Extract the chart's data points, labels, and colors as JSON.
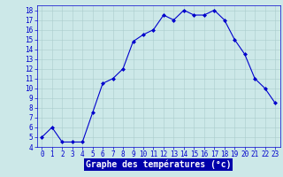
{
  "hours": [
    0,
    1,
    2,
    3,
    4,
    5,
    6,
    7,
    8,
    9,
    10,
    11,
    12,
    13,
    14,
    15,
    16,
    17,
    18,
    19,
    20,
    21,
    22,
    23
  ],
  "temps": [
    5.0,
    6.0,
    4.5,
    4.5,
    4.5,
    7.5,
    10.5,
    11.0,
    12.0,
    14.8,
    15.5,
    16.0,
    17.5,
    17.0,
    18.0,
    17.5,
    17.5,
    18.0,
    17.0,
    15.0,
    13.5,
    11.0,
    10.0,
    8.5
  ],
  "line_color": "#0000cc",
  "marker": "D",
  "marker_size": 2,
  "bg_color": "#cce8e8",
  "grid_color": "#aacccc",
  "xlabel": "Graphe des températures (°c)",
  "xlabel_bg": "#0000aa",
  "xlabel_color": "#ffffff",
  "ylim": [
    4,
    18.5
  ],
  "yticks": [
    4,
    5,
    6,
    7,
    8,
    9,
    10,
    11,
    12,
    13,
    14,
    15,
    16,
    17,
    18
  ],
  "xticks": [
    0,
    1,
    2,
    3,
    4,
    5,
    6,
    7,
    8,
    9,
    10,
    11,
    12,
    13,
    14,
    15,
    16,
    17,
    18,
    19,
    20,
    21,
    22,
    23
  ],
  "tick_color": "#0000cc",
  "tick_fontsize": 5.5,
  "xlabel_fontsize": 7.0
}
